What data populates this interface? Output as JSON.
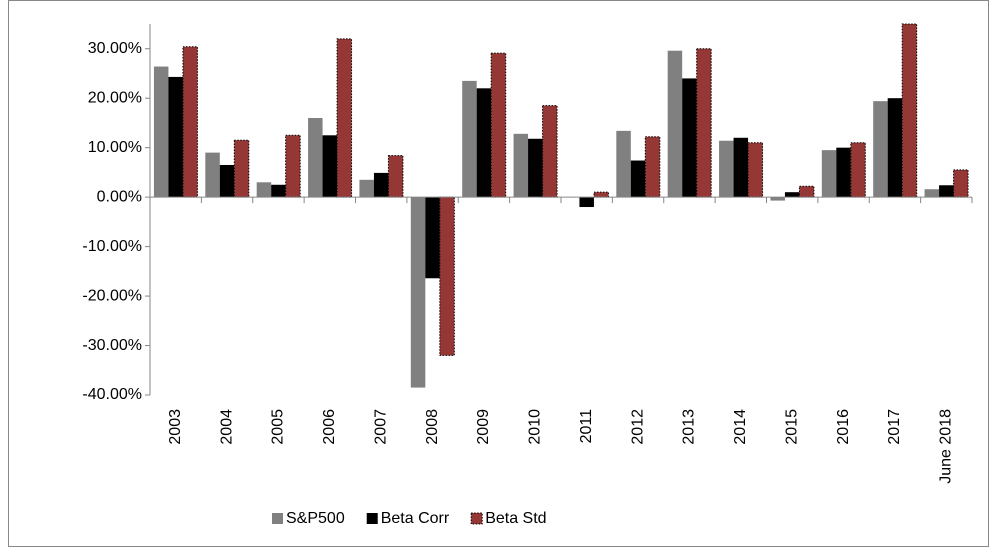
{
  "chart_data": {
    "type": "bar",
    "categories": [
      "2003",
      "2004",
      "2005",
      "2006",
      "2007",
      "2008",
      "2009",
      "2010",
      "2011",
      "2012",
      "2013",
      "2014",
      "2015",
      "2016",
      "2017",
      "June 2018"
    ],
    "series": [
      {
        "name": "S&P500",
        "color": "#808080",
        "values": [
          26.4,
          9.0,
          3.0,
          16.0,
          3.5,
          -38.5,
          23.5,
          12.8,
          0.0,
          13.4,
          29.6,
          11.4,
          -0.7,
          9.5,
          19.4,
          1.6
        ]
      },
      {
        "name": "Beta Corr",
        "color": "#000000",
        "values": [
          24.3,
          6.5,
          2.5,
          12.5,
          4.9,
          -16.4,
          22.0,
          11.8,
          -2.0,
          7.4,
          24.0,
          12.0,
          1.0,
          10.0,
          20.0,
          2.4
        ]
      },
      {
        "name": "Beta Std",
        "color": "#953735",
        "values": [
          30.4,
          11.5,
          12.5,
          32.0,
          8.4,
          -32.0,
          29.1,
          18.5,
          1.0,
          12.2,
          30.0,
          11.0,
          2.2,
          11.0,
          35.0,
          5.5
        ]
      }
    ],
    "ylim": [
      -40,
      35
    ],
    "yticks": [
      {
        "value": -40,
        "label": "-40.00%"
      },
      {
        "value": -30,
        "label": "-30.00%"
      },
      {
        "value": -20,
        "label": "-20.00%"
      },
      {
        "value": -10,
        "label": "-10.00%"
      },
      {
        "value": 0,
        "label": "0.00%"
      },
      {
        "value": 10,
        "label": "10.00%"
      },
      {
        "value": 20,
        "label": "20.00%"
      },
      {
        "value": 30,
        "label": "30.00%"
      }
    ],
    "grid": false,
    "legend": "bottom"
  }
}
